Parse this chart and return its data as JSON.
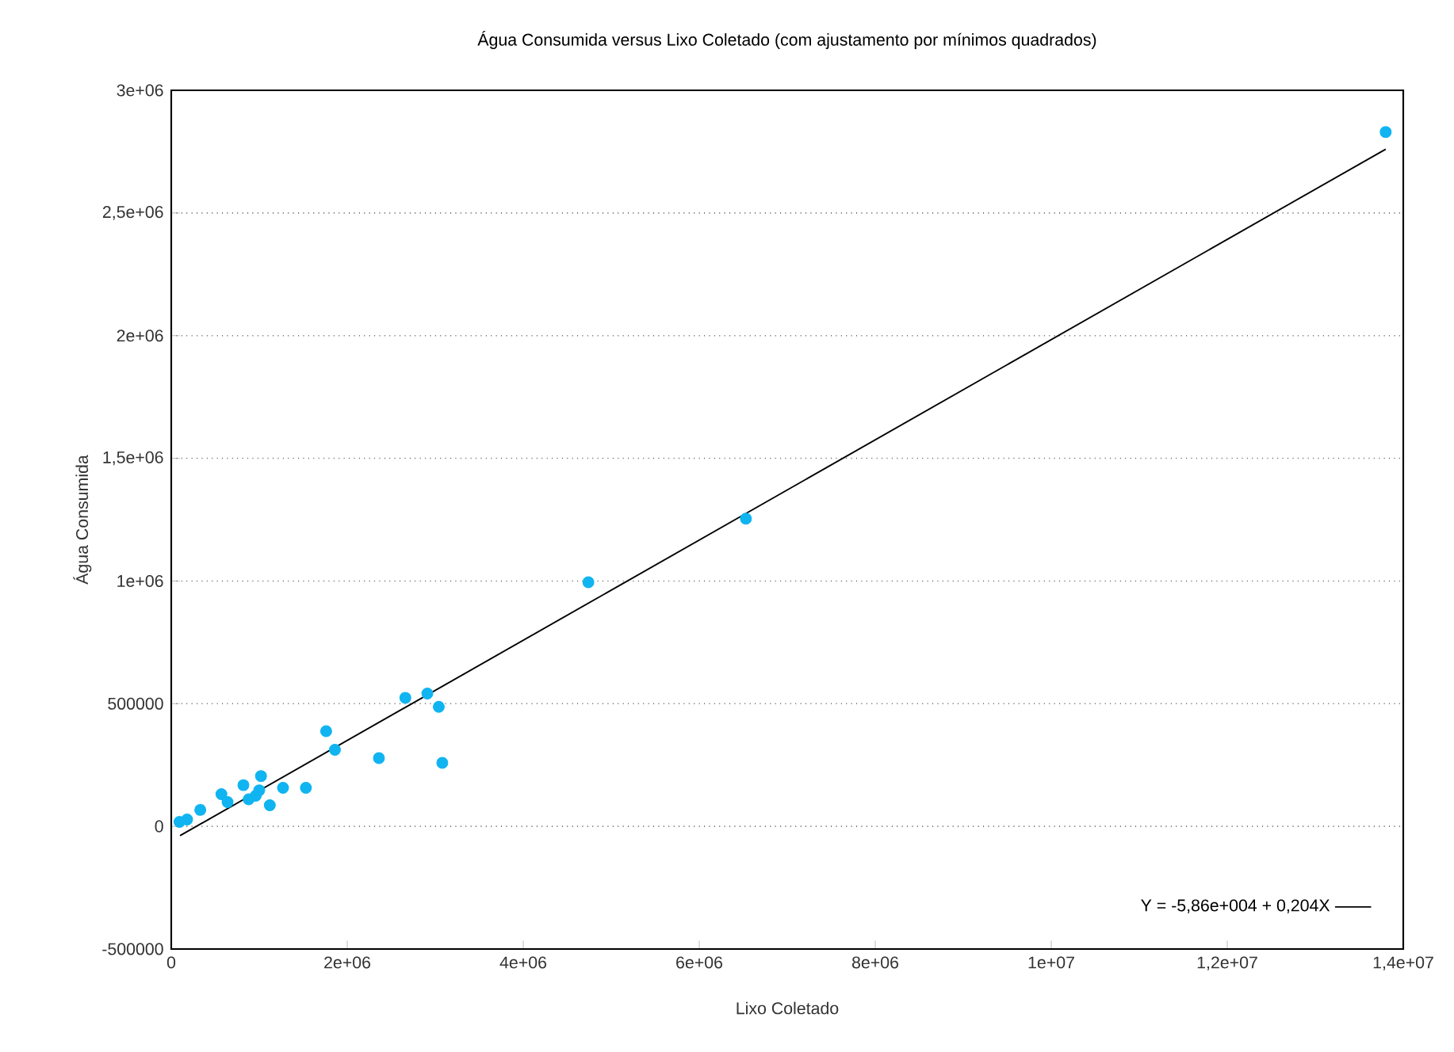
{
  "chart_data": {
    "type": "scatter",
    "title": "Água Consumida versus Lixo Coletado (com ajustamento por mínimos quadrados)",
    "xlabel": "Lixo Coletado",
    "ylabel": "Água Consumida",
    "xlim": [
      0,
      14000000
    ],
    "ylim": [
      -500000,
      3000000
    ],
    "xticks": [
      0,
      {
        "value": 2000000,
        "label": "2e+06"
      },
      {
        "value": 4000000,
        "label": "4e+06"
      },
      {
        "value": 6000000,
        "label": "6e+06"
      },
      {
        "value": 8000000,
        "label": "8e+06"
      },
      {
        "value": 10000000,
        "label": "1e+07"
      },
      {
        "value": 12000000,
        "label": "1,2e+07"
      },
      {
        "value": 14000000,
        "label": "1,4e+07"
      }
    ],
    "yticks": [
      -500000,
      0,
      500000,
      {
        "value": 1000000,
        "label": "1e+06"
      },
      {
        "value": 1500000,
        "label": "1,5e+06"
      },
      {
        "value": 2000000,
        "label": "2e+06"
      },
      {
        "value": 2500000,
        "label": "2,5e+06"
      },
      {
        "value": 3000000,
        "label": "3e+06"
      }
    ],
    "grid": "y",
    "legend": "bottom right",
    "series": [
      {
        "color": "#10b4f0",
        "marker": "circle",
        "x": [
          94000,
          180000,
          330000,
          570000,
          640000,
          820000,
          880000,
          960000,
          1020000,
          1000000,
          1120000,
          1270000,
          1530000,
          1760000,
          1860000,
          2360000,
          2660000,
          2910000,
          3040000,
          3080000,
          4740000,
          6530000,
          13800000
        ],
        "values": [
          18000,
          28000,
          67000,
          131000,
          99000,
          168000,
          110000,
          125000,
          205000,
          147000,
          86000,
          157000,
          157000,
          388000,
          312000,
          278000,
          524000,
          541000,
          487000,
          259000,
          995000,
          1254000,
          2830000
        ]
      },
      {
        "type": "line",
        "name": "Y = -5,86e+004 + 0,204X",
        "color": "#000000",
        "marker": "none",
        "line_style": "solid",
        "x": [
          100000,
          13800000
        ],
        "values": [
          -38000,
          2760000
        ]
      }
    ]
  }
}
